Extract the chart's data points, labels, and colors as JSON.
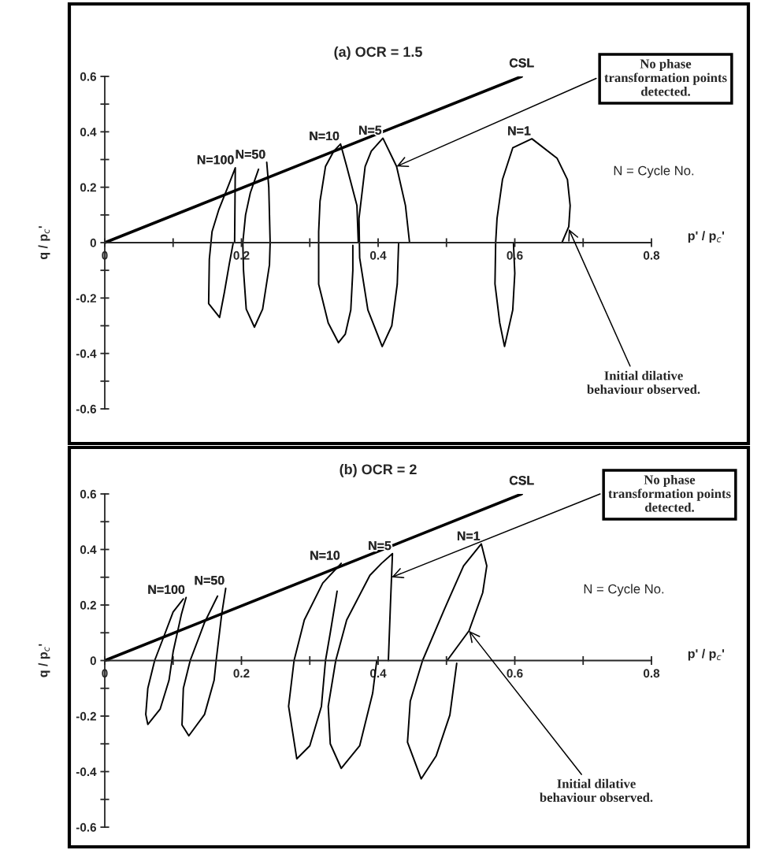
{
  "chart_data": [
    {
      "type": "line",
      "title": "(a) OCR = 1.5",
      "xlabel": "p' / p$_{c}$'",
      "ylabel": "q / p$_{c}$'",
      "marker": "none",
      "line_style": "solid",
      "xlim": [
        0,
        0.8
      ],
      "ylim": [
        -0.6,
        0.6
      ],
      "xticks": [
        0,
        {
          "value": 0.1,
          "label": null
        },
        0.2,
        {
          "value": 0.3,
          "label": null
        },
        0.4,
        {
          "value": 0.5,
          "label": null
        },
        0.6,
        {
          "value": 0.7,
          "label": null
        },
        0.8
      ],
      "yticks": [
        -0.6,
        {
          "value": -0.5,
          "label": null
        },
        -0.4,
        {
          "value": -0.3,
          "label": null
        },
        -0.2,
        {
          "value": -0.1,
          "label": null
        },
        0,
        {
          "value": 0.1,
          "label": null
        },
        0.2,
        {
          "value": 0.3,
          "label": null
        },
        0.4,
        {
          "value": 0.5,
          "label": null
        },
        0.6
      ],
      "series": [
        {
          "name": "CSL",
          "color": "#000000",
          "x": [
            0,
            0.61
          ],
          "values": [
            0,
            0.6
          ]
        },
        {
          "name": "N=100",
          "color": "#000000",
          "x": [
            0.19,
            0.191,
            0.18,
            0.167,
            0.157,
            0.153,
            0.152,
            0.168,
            0.175,
            0.182,
            0.188
          ],
          "values": [
            0.0,
            0.27,
            0.2,
            0.12,
            0.04,
            -0.06,
            -0.22,
            -0.27,
            -0.18,
            -0.08,
            0.0
          ]
        },
        {
          "name": "N=50",
          "color": "#000000",
          "x": [
            0.237,
            0.24,
            0.242,
            0.241,
            0.231,
            0.219,
            0.207,
            0.203,
            0.202,
            0.206,
            0.213,
            0.225
          ],
          "values": [
            0.29,
            0.2,
            0.0,
            -0.08,
            -0.24,
            -0.305,
            -0.24,
            -0.1,
            0.0,
            0.1,
            0.18,
            0.265
          ]
        },
        {
          "name": "N=10",
          "color": "#000000",
          "x": [
            0.371,
            0.369,
            0.354,
            0.345,
            0.335,
            0.323,
            0.315,
            0.313,
            0.313,
            0.327,
            0.342,
            0.352,
            0.36,
            0.363,
            0.363
          ],
          "values": [
            0.0,
            0.134,
            0.275,
            0.356,
            0.33,
            0.275,
            0.15,
            0.04,
            -0.15,
            -0.29,
            -0.361,
            -0.33,
            -0.243,
            -0.1,
            -0.01
          ]
        },
        {
          "name": "N=5",
          "color": "#000000",
          "x": [
            0.446,
            0.44,
            0.427,
            0.407,
            0.39,
            0.381,
            0.372,
            0.373,
            0.385,
            0.406,
            0.42,
            0.428,
            0.43
          ],
          "values": [
            0.0,
            0.134,
            0.275,
            0.377,
            0.33,
            0.275,
            0.087,
            -0.055,
            -0.243,
            -0.375,
            -0.3,
            -0.15,
            0.0
          ]
        },
        {
          "name": "N=1",
          "color": "#000000",
          "x": [
            0.669,
            0.679,
            0.681,
            0.677,
            0.662,
            0.625,
            0.597,
            0.582,
            0.574,
            0.572,
            0.571,
            0.578,
            0.585,
            0.597,
            0.6,
            0.598
          ],
          "values": [
            0.0,
            0.058,
            0.134,
            0.228,
            0.304,
            0.375,
            0.342,
            0.228,
            0.087,
            0.0,
            -0.149,
            -0.29,
            -0.375,
            -0.243,
            -0.111,
            0.0
          ]
        }
      ],
      "annotations": [
        "N = Cycle No.",
        {
          "text": "No phase\ntransformation points\ndetected.",
          "x": 0.427,
          "y": 0.275
        },
        {
          "text": "Initial dilative\nbehaviour observed.",
          "x": 0.679,
          "y": 0.049
        }
      ]
    },
    {
      "type": "line",
      "title": "(b) OCR = 2",
      "xlabel": "p' / p$_{c}$'",
      "ylabel": "q / p$_{c}$'",
      "marker": "none",
      "line_style": "solid",
      "xlim": [
        0,
        0.8
      ],
      "ylim": [
        -0.6,
        0.6
      ],
      "xticks": [
        0,
        {
          "value": 0.1,
          "label": null
        },
        0.2,
        {
          "value": 0.3,
          "label": null
        },
        0.4,
        {
          "value": 0.5,
          "label": null
        },
        0.6,
        {
          "value": 0.7,
          "label": null
        },
        0.8
      ],
      "yticks": [
        -0.6,
        {
          "value": -0.5,
          "label": null
        },
        -0.4,
        {
          "value": -0.3,
          "label": null
        },
        -0.2,
        {
          "value": -0.1,
          "label": null
        },
        0,
        {
          "value": 0.1,
          "label": null
        },
        0.2,
        {
          "value": 0.3,
          "label": null
        },
        0.4,
        {
          "value": 0.5,
          "label": null
        },
        0.6
      ],
      "series": [
        {
          "name": "CSL",
          "color": "#000000",
          "x": [
            0,
            0.61
          ],
          "values": [
            0,
            0.6
          ]
        },
        {
          "name": "N=100",
          "color": "#000000",
          "x": [
            0.119,
            0.112,
            0.1,
            0.094,
            0.081,
            0.063,
            0.06,
            0.063,
            0.073,
            0.087,
            0.1,
            0.115
          ],
          "values": [
            0.227,
            0.165,
            0.031,
            -0.071,
            -0.175,
            -0.23,
            -0.194,
            -0.1,
            0.0,
            0.09,
            0.175,
            0.222
          ]
        },
        {
          "name": "N=50",
          "color": "#000000",
          "x": [
            0.177,
            0.171,
            0.163,
            0.16,
            0.146,
            0.123,
            0.113,
            0.115,
            0.125,
            0.146,
            0.165
          ],
          "values": [
            0.26,
            0.165,
            0.0,
            -0.071,
            -0.194,
            -0.271,
            -0.232,
            -0.1,
            0.0,
            0.137,
            0.232
          ]
        },
        {
          "name": "N=10",
          "color": "#000000",
          "x": [
            0.346,
            0.319,
            0.292,
            0.277,
            0.269,
            0.281,
            0.3,
            0.317,
            0.323,
            0.33,
            0.34
          ],
          "values": [
            0.35,
            0.279,
            0.146,
            0.0,
            -0.165,
            -0.354,
            -0.307,
            -0.165,
            0.0,
            0.1,
            0.25
          ]
        },
        {
          "name": "N=5",
          "color": "#000000",
          "x": [
            0.415,
            0.418,
            0.421,
            0.405,
            0.388,
            0.354,
            0.338,
            0.327,
            0.33,
            0.346,
            0.373,
            0.392,
            0.398
          ],
          "values": [
            0.0,
            0.2,
            0.385,
            0.35,
            0.307,
            0.146,
            0.0,
            -0.165,
            -0.3,
            -0.388,
            -0.307,
            -0.118,
            0.0
          ]
        },
        {
          "name": "N=1",
          "color": "#000000",
          "x": [
            0.501,
            0.533,
            0.553,
            0.559,
            0.551,
            0.525,
            0.497,
            0.465,
            0.447,
            0.443,
            0.463,
            0.485,
            0.505,
            0.515
          ],
          "values": [
            0.0,
            0.107,
            0.244,
            0.341,
            0.42,
            0.341,
            0.185,
            0.0,
            -0.147,
            -0.294,
            -0.426,
            -0.343,
            -0.196,
            -0.01
          ]
        }
      ],
      "annotations": [
        "N = Cycle No.",
        {
          "text": "No phase\ntransformation points\ndetected.",
          "x": 0.42,
          "y": 0.3
        },
        {
          "text": "Initial dilative\nbehaviour observed.",
          "x": 0.533,
          "y": 0.107
        }
      ]
    }
  ]
}
